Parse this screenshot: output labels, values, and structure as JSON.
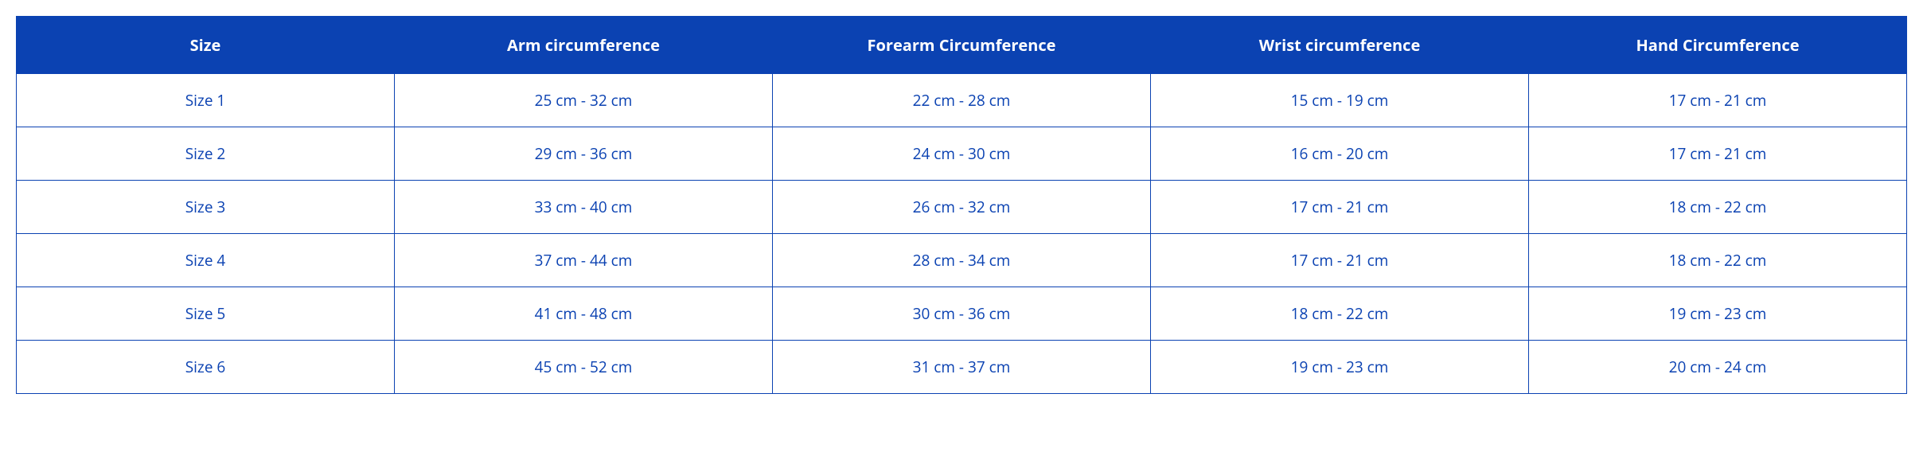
{
  "table": {
    "header_bg": "#0b42b2",
    "header_fg": "#ffffff",
    "cell_fg": "#0b42b2",
    "cell_bg": "#ffffff",
    "border_color": "#0b42b2",
    "header_fontsize": 20,
    "cell_fontsize": 19,
    "columns": [
      "Size",
      "Arm circumference",
      "Forearm Circumference",
      "Wrist circumference",
      "Hand Circumference"
    ],
    "rows": [
      [
        "Size 1",
        "25 cm - 32 cm",
        "22 cm - 28 cm",
        "15 cm - 19 cm",
        "17 cm - 21 cm"
      ],
      [
        "Size 2",
        "29 cm - 36 cm",
        "24 cm - 30 cm",
        "16 cm - 20 cm",
        "17 cm - 21 cm"
      ],
      [
        "Size 3",
        "33 cm - 40 cm",
        "26 cm - 32 cm",
        "17 cm - 21 cm",
        "18 cm - 22 cm"
      ],
      [
        "Size 4",
        "37 cm - 44 cm",
        "28 cm - 34 cm",
        "17 cm - 21 cm",
        "18 cm - 22 cm"
      ],
      [
        "Size 5",
        "41 cm - 48 cm",
        "30 cm - 36 cm",
        "18 cm - 22 cm",
        "19 cm - 23 cm"
      ],
      [
        "Size 6",
        "45 cm - 52 cm",
        "31 cm - 37 cm",
        "19 cm - 23 cm",
        "20 cm - 24 cm"
      ]
    ]
  }
}
